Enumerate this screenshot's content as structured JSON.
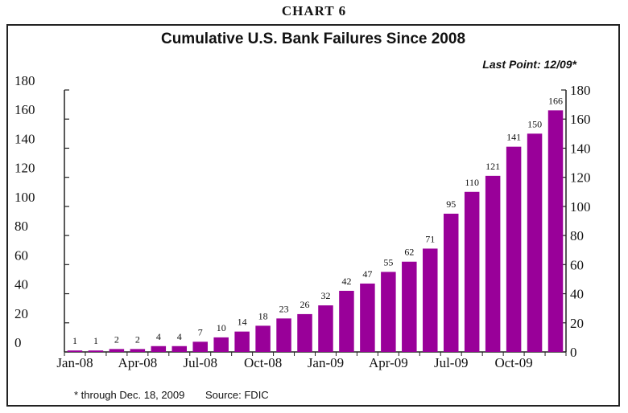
{
  "header": {
    "chart_number": "CHART 6"
  },
  "footnote": {
    "note": "* through Dec. 18, 2009",
    "source": "Source: FDIC"
  },
  "chart_data": {
    "type": "bar",
    "title": "Cumulative U.S. Bank Failures Since 2008",
    "annotation": "Last Point: 12/09*",
    "categories": [
      "Jan-08",
      "Feb-08",
      "Mar-08",
      "Apr-08",
      "May-08",
      "Jun-08",
      "Jul-08",
      "Aug-08",
      "Sep-08",
      "Oct-08",
      "Nov-08",
      "Dec-08",
      "Jan-09",
      "Feb-09",
      "Mar-09",
      "Apr-09",
      "May-09",
      "Jun-09",
      "Jul-09",
      "Aug-09",
      "Sep-09",
      "Oct-09",
      "Nov-09",
      "Dec-09"
    ],
    "x_tick_labels": [
      "Jan-08",
      "Apr-08",
      "Jul-08",
      "Oct-08",
      "Jan-09",
      "Apr-09",
      "Jul-09",
      "Oct-09"
    ],
    "values": [
      1,
      1,
      2,
      2,
      4,
      4,
      7,
      10,
      14,
      18,
      23,
      26,
      32,
      42,
      47,
      55,
      62,
      71,
      95,
      110,
      121,
      141,
      150,
      166
    ],
    "y_ticks": [
      0,
      20,
      40,
      60,
      80,
      100,
      120,
      140,
      160,
      180
    ],
    "ylim": [
      0,
      180
    ],
    "bar_color": "#990099",
    "xlabel": "",
    "ylabel": "",
    "grid": false
  }
}
